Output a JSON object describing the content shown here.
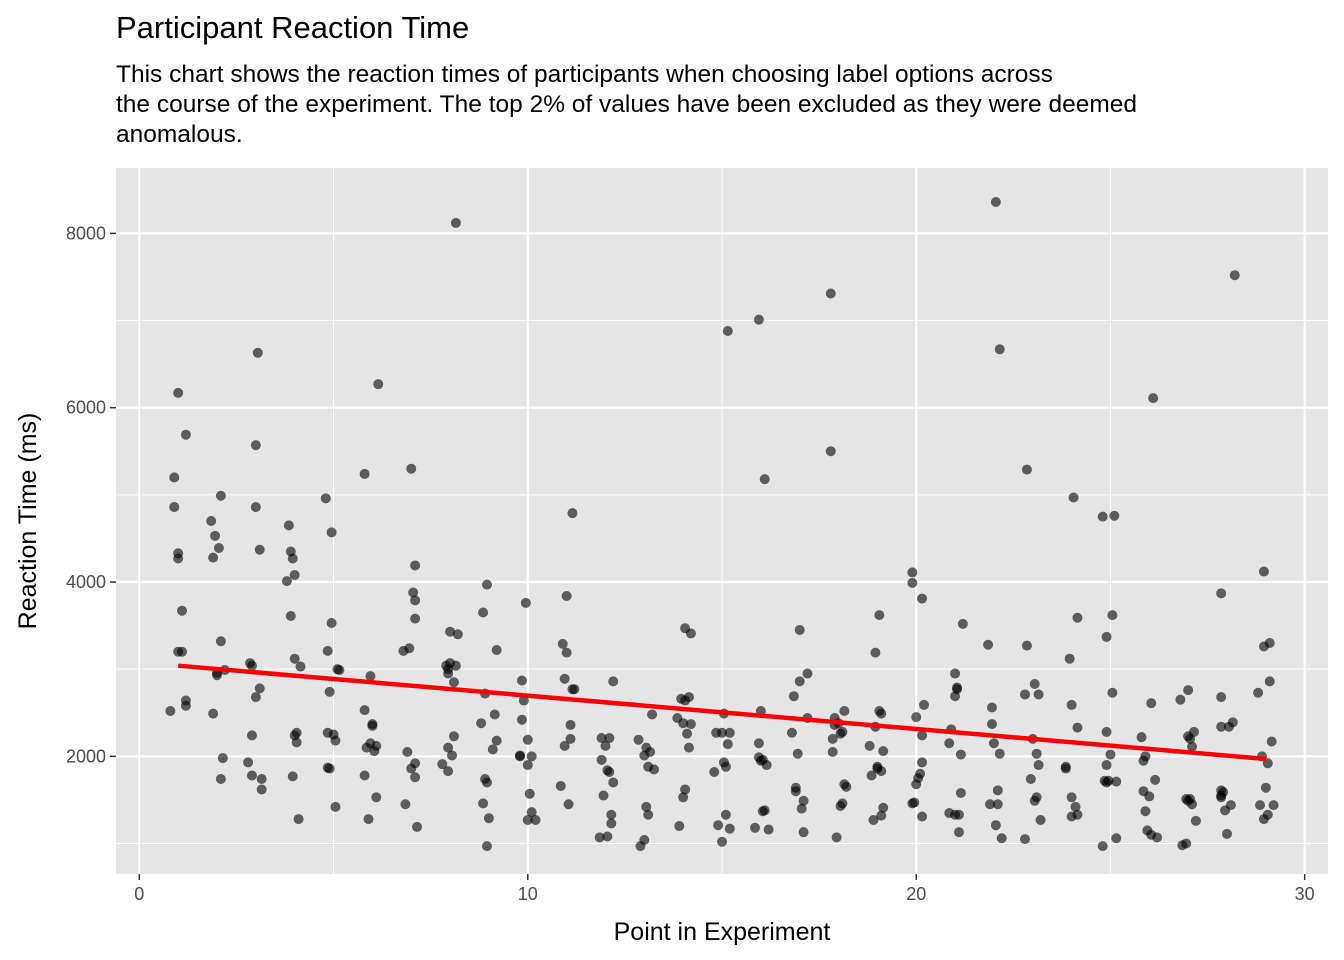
{
  "chart_data": {
    "type": "scatter",
    "title": "Participant Reaction Time",
    "subtitle": "This chart shows the reaction times of participants when choosing label options across\nthe course of the experiment. The top 2% of values have been excluded as they were deemed\nanomalous.",
    "xlabel": "Point in Experiment",
    "ylabel": "Reaction Time (ms)",
    "xlim": [
      -0.6,
      30.6
    ],
    "ylim": [
      650,
      8750
    ],
    "x_ticks": [
      0,
      10,
      20,
      30
    ],
    "y_ticks": [
      2000,
      4000,
      6000,
      8000
    ],
    "x_tick_labels": [
      "0",
      "10",
      "20",
      "30"
    ],
    "y_tick_labels": [
      "2000",
      "4000",
      "6000",
      "8000"
    ],
    "grid": true,
    "legend": "none",
    "colors": {
      "panel": "#e5e5e5",
      "grid": "#ffffff",
      "point": "#000000",
      "trend": "#ff0000",
      "axis_text": "#4d4d4d"
    },
    "trend_line": {
      "x": [
        1,
        29
      ],
      "y": [
        3040,
        1970
      ]
    },
    "points": [
      [
        0.8,
        2520
      ],
      [
        0.9,
        5200
      ],
      [
        0.9,
        4860
      ],
      [
        1.0,
        6170
      ],
      [
        1.0,
        4330
      ],
      [
        1.0,
        4270
      ],
      [
        1.1,
        3670
      ],
      [
        1.0,
        3200
      ],
      [
        1.1,
        3200
      ],
      [
        1.2,
        5690
      ],
      [
        1.2,
        2640
      ],
      [
        1.2,
        2580
      ],
      [
        1.85,
        4700
      ],
      [
        1.9,
        4280
      ],
      [
        1.9,
        2490
      ],
      [
        1.95,
        4530
      ],
      [
        2.0,
        2960
      ],
      [
        2.0,
        2930
      ],
      [
        2.05,
        4390
      ],
      [
        2.1,
        4990
      ],
      [
        2.1,
        3320
      ],
      [
        2.15,
        1980
      ],
      [
        2.1,
        1740
      ],
      [
        2.2,
        2990
      ],
      [
        2.8,
        1930
      ],
      [
        2.85,
        3070
      ],
      [
        2.9,
        3040
      ],
      [
        2.9,
        2240
      ],
      [
        2.9,
        1780
      ],
      [
        3.0,
        2680
      ],
      [
        3.0,
        5570
      ],
      [
        3.0,
        4860
      ],
      [
        3.05,
        6630
      ],
      [
        3.1,
        4370
      ],
      [
        3.1,
        2780
      ],
      [
        3.15,
        1740
      ],
      [
        3.15,
        1620
      ],
      [
        3.8,
        4010
      ],
      [
        3.85,
        4650
      ],
      [
        3.9,
        3610
      ],
      [
        3.9,
        4350
      ],
      [
        3.95,
        4270
      ],
      [
        4.0,
        3120
      ],
      [
        4.0,
        4080
      ],
      [
        4.0,
        2240
      ],
      [
        4.05,
        2270
      ],
      [
        4.05,
        2160
      ],
      [
        3.95,
        1770
      ],
      [
        4.1,
        1280
      ],
      [
        4.15,
        3030
      ],
      [
        4.8,
        4960
      ],
      [
        4.85,
        3210
      ],
      [
        4.85,
        2270
      ],
      [
        4.85,
        1870
      ],
      [
        4.9,
        1860
      ],
      [
        4.9,
        2740
      ],
      [
        4.95,
        4570
      ],
      [
        4.95,
        3530
      ],
      [
        5.0,
        2250
      ],
      [
        5.05,
        2180
      ],
      [
        5.05,
        1420
      ],
      [
        5.1,
        3000
      ],
      [
        5.15,
        2990
      ],
      [
        5.8,
        5240
      ],
      [
        5.8,
        2530
      ],
      [
        5.8,
        1780
      ],
      [
        5.85,
        2100
      ],
      [
        5.9,
        1280
      ],
      [
        5.95,
        2150
      ],
      [
        5.95,
        2920
      ],
      [
        6.0,
        2370
      ],
      [
        6.0,
        2350
      ],
      [
        6.05,
        2060
      ],
      [
        6.1,
        2120
      ],
      [
        6.15,
        6270
      ],
      [
        6.1,
        1530
      ],
      [
        6.8,
        3210
      ],
      [
        6.85,
        1450
      ],
      [
        6.9,
        2050
      ],
      [
        6.95,
        3240
      ],
      [
        7.0,
        5300
      ],
      [
        7.0,
        1860
      ],
      [
        7.05,
        3880
      ],
      [
        7.1,
        3790
      ],
      [
        7.1,
        3580
      ],
      [
        7.1,
        4190
      ],
      [
        7.1,
        1920
      ],
      [
        7.1,
        1760
      ],
      [
        7.15,
        1190
      ],
      [
        7.8,
        1910
      ],
      [
        7.9,
        3040
      ],
      [
        7.95,
        3000
      ],
      [
        7.95,
        2950
      ],
      [
        7.95,
        1830
      ],
      [
        7.95,
        2100
      ],
      [
        8.0,
        3070
      ],
      [
        8.0,
        3430
      ],
      [
        8.1,
        2850
      ],
      [
        8.05,
        2010
      ],
      [
        8.1,
        2230
      ],
      [
        8.15,
        8120
      ],
      [
        8.15,
        3040
      ],
      [
        8.2,
        3400
      ],
      [
        8.8,
        2380
      ],
      [
        8.85,
        3650
      ],
      [
        8.85,
        1460
      ],
      [
        8.9,
        1740
      ],
      [
        8.9,
        2720
      ],
      [
        8.95,
        3970
      ],
      [
        8.95,
        1700
      ],
      [
        8.95,
        970
      ],
      [
        9.0,
        1290
      ],
      [
        9.1,
        2080
      ],
      [
        9.15,
        2480
      ],
      [
        9.2,
        3220
      ],
      [
        9.2,
        2180
      ],
      [
        9.8,
        2010
      ],
      [
        9.8,
        2000
      ],
      [
        9.85,
        2870
      ],
      [
        9.85,
        2420
      ],
      [
        9.9,
        2640
      ],
      [
        9.95,
        3760
      ],
      [
        10.0,
        2190
      ],
      [
        10.0,
        1900
      ],
      [
        10.05,
        1570
      ],
      [
        10.0,
        1270
      ],
      [
        10.1,
        2000
      ],
      [
        10.1,
        1360
      ],
      [
        10.2,
        1270
      ],
      [
        10.85,
        1660
      ],
      [
        10.9,
        3290
      ],
      [
        10.95,
        2120
      ],
      [
        10.95,
        2890
      ],
      [
        11.0,
        3190
      ],
      [
        11.0,
        3840
      ],
      [
        11.05,
        1450
      ],
      [
        11.1,
        2360
      ],
      [
        11.1,
        2200
      ],
      [
        11.15,
        2770
      ],
      [
        11.15,
        4790
      ],
      [
        11.2,
        2770
      ],
      [
        11.85,
        1070
      ],
      [
        11.9,
        1960
      ],
      [
        11.9,
        2210
      ],
      [
        11.95,
        1550
      ],
      [
        12.0,
        2120
      ],
      [
        12.05,
        1080
      ],
      [
        12.05,
        1840
      ],
      [
        12.1,
        2210
      ],
      [
        12.1,
        1820
      ],
      [
        12.15,
        1230
      ],
      [
        12.15,
        1330
      ],
      [
        12.2,
        1700
      ],
      [
        12.2,
        2860
      ],
      [
        12.85,
        2190
      ],
      [
        12.9,
        970
      ],
      [
        13.0,
        1040
      ],
      [
        13.05,
        2100
      ],
      [
        13.0,
        2010
      ],
      [
        13.1,
        1880
      ],
      [
        13.05,
        1420
      ],
      [
        13.1,
        1330
      ],
      [
        13.15,
        2050
      ],
      [
        13.2,
        2480
      ],
      [
        13.25,
        1850
      ],
      [
        13.85,
        2440
      ],
      [
        13.9,
        1200
      ],
      [
        13.95,
        2660
      ],
      [
        14.0,
        2380
      ],
      [
        14.0,
        1530
      ],
      [
        14.05,
        2640
      ],
      [
        14.05,
        1620
      ],
      [
        14.1,
        2260
      ],
      [
        14.05,
        3470
      ],
      [
        14.15,
        2680
      ],
      [
        14.2,
        2370
      ],
      [
        14.15,
        2100
      ],
      [
        14.2,
        3410
      ],
      [
        14.8,
        1820
      ],
      [
        14.85,
        2270
      ],
      [
        14.9,
        1210
      ],
      [
        15.0,
        1020
      ],
      [
        15.0,
        2270
      ],
      [
        15.05,
        1930
      ],
      [
        15.05,
        2490
      ],
      [
        15.1,
        1880
      ],
      [
        15.1,
        1330
      ],
      [
        15.15,
        2140
      ],
      [
        15.15,
        6880
      ],
      [
        15.2,
        1170
      ],
      [
        15.2,
        2270
      ],
      [
        15.85,
        1180
      ],
      [
        15.95,
        7010
      ],
      [
        15.95,
        2150
      ],
      [
        15.95,
        1990
      ],
      [
        16.0,
        1950
      ],
      [
        16.0,
        2520
      ],
      [
        16.05,
        1370
      ],
      [
        16.05,
        1960
      ],
      [
        16.1,
        1380
      ],
      [
        16.1,
        5180
      ],
      [
        16.15,
        1900
      ],
      [
        16.2,
        1160
      ],
      [
        16.8,
        2270
      ],
      [
        16.85,
        2690
      ],
      [
        16.9,
        1640
      ],
      [
        16.95,
        2030
      ],
      [
        16.9,
        1600
      ],
      [
        17.0,
        3450
      ],
      [
        17.0,
        2860
      ],
      [
        17.05,
        1400
      ],
      [
        17.1,
        1490
      ],
      [
        17.1,
        1130
      ],
      [
        17.2,
        2950
      ],
      [
        17.2,
        2440
      ],
      [
        17.8,
        7310
      ],
      [
        17.8,
        5500
      ],
      [
        17.85,
        2200
      ],
      [
        17.85,
        2050
      ],
      [
        17.9,
        2360
      ],
      [
        17.9,
        2440
      ],
      [
        17.95,
        1070
      ],
      [
        18.0,
        2380
      ],
      [
        18.05,
        2260
      ],
      [
        18.05,
        1430
      ],
      [
        18.1,
        2280
      ],
      [
        18.1,
        1460
      ],
      [
        18.15,
        2520
      ],
      [
        18.15,
        1680
      ],
      [
        18.2,
        1650
      ],
      [
        18.8,
        2120
      ],
      [
        18.85,
        1780
      ],
      [
        18.9,
        1270
      ],
      [
        18.95,
        3190
      ],
      [
        18.95,
        2340
      ],
      [
        19.0,
        1880
      ],
      [
        19.0,
        1860
      ],
      [
        19.05,
        3620
      ],
      [
        19.05,
        2520
      ],
      [
        19.1,
        1830
      ],
      [
        19.1,
        2490
      ],
      [
        19.15,
        2060
      ],
      [
        19.15,
        1410
      ],
      [
        19.1,
        1320
      ],
      [
        19.9,
        3990
      ],
      [
        19.9,
        4110
      ],
      [
        19.9,
        1460
      ],
      [
        19.95,
        1470
      ],
      [
        20.0,
        1680
      ],
      [
        20.0,
        2450
      ],
      [
        20.05,
        1750
      ],
      [
        20.1,
        1800
      ],
      [
        20.15,
        2240
      ],
      [
        20.15,
        1930
      ],
      [
        20.15,
        3810
      ],
      [
        20.15,
        1310
      ],
      [
        20.2,
        2590
      ],
      [
        20.85,
        2150
      ],
      [
        20.85,
        1350
      ],
      [
        20.9,
        2310
      ],
      [
        21.0,
        1330
      ],
      [
        21.0,
        2950
      ],
      [
        21.0,
        2690
      ],
      [
        21.05,
        2790
      ],
      [
        21.05,
        2770
      ],
      [
        21.1,
        1130
      ],
      [
        21.1,
        1330
      ],
      [
        21.15,
        2020
      ],
      [
        21.2,
        3520
      ],
      [
        21.15,
        1580
      ],
      [
        21.85,
        3280
      ],
      [
        21.9,
        1450
      ],
      [
        21.95,
        2560
      ],
      [
        21.95,
        2370
      ],
      [
        22.0,
        2150
      ],
      [
        22.05,
        8360
      ],
      [
        22.05,
        1210
      ],
      [
        22.1,
        1450
      ],
      [
        22.1,
        1610
      ],
      [
        22.15,
        2030
      ],
      [
        22.15,
        6670
      ],
      [
        22.2,
        1060
      ],
      [
        22.8,
        2710
      ],
      [
        22.8,
        1050
      ],
      [
        22.85,
        5290
      ],
      [
        22.85,
        3270
      ],
      [
        22.95,
        1740
      ],
      [
        23.0,
        2200
      ],
      [
        23.05,
        2830
      ],
      [
        23.05,
        1490
      ],
      [
        23.1,
        1530
      ],
      [
        23.1,
        2030
      ],
      [
        23.15,
        2710
      ],
      [
        23.15,
        1900
      ],
      [
        23.2,
        1270
      ],
      [
        23.85,
        1880
      ],
      [
        23.85,
        1860
      ],
      [
        23.95,
        3120
      ],
      [
        24.0,
        2590
      ],
      [
        24.0,
        1530
      ],
      [
        24.0,
        1310
      ],
      [
        24.05,
        4970
      ],
      [
        24.1,
        1420
      ],
      [
        24.15,
        3590
      ],
      [
        24.15,
        2330
      ],
      [
        24.15,
        1330
      ],
      [
        24.8,
        4750
      ],
      [
        24.8,
        970
      ],
      [
        24.85,
        1720
      ],
      [
        24.9,
        3370
      ],
      [
        24.9,
        2280
      ],
      [
        24.9,
        1900
      ],
      [
        24.9,
        1700
      ],
      [
        24.95,
        1720
      ],
      [
        25.0,
        2020
      ],
      [
        25.05,
        3620
      ],
      [
        25.05,
        2730
      ],
      [
        25.1,
        4760
      ],
      [
        25.15,
        1060
      ],
      [
        25.15,
        1710
      ],
      [
        25.8,
        2220
      ],
      [
        25.85,
        1950
      ],
      [
        25.85,
        1600
      ],
      [
        25.9,
        1370
      ],
      [
        25.9,
        2000
      ],
      [
        25.95,
        1150
      ],
      [
        26.0,
        1540
      ],
      [
        26.05,
        2610
      ],
      [
        26.05,
        1100
      ],
      [
        26.1,
        6110
      ],
      [
        26.15,
        1730
      ],
      [
        26.2,
        1070
      ],
      [
        26.8,
        2650
      ],
      [
        26.85,
        980
      ],
      [
        26.95,
        1510
      ],
      [
        26.95,
        1000
      ],
      [
        27.0,
        1490
      ],
      [
        27.0,
        2760
      ],
      [
        27.0,
        2230
      ],
      [
        27.05,
        1510
      ],
      [
        27.05,
        2200
      ],
      [
        27.1,
        1450
      ],
      [
        27.15,
        2280
      ],
      [
        27.1,
        2110
      ],
      [
        27.2,
        1260
      ],
      [
        27.85,
        3870
      ],
      [
        27.85,
        2680
      ],
      [
        27.85,
        1550
      ],
      [
        27.85,
        1530
      ],
      [
        27.85,
        1610
      ],
      [
        27.85,
        2340
      ],
      [
        27.9,
        1590
      ],
      [
        27.95,
        1380
      ],
      [
        28.0,
        1110
      ],
      [
        28.05,
        2340
      ],
      [
        28.1,
        1440
      ],
      [
        28.15,
        2390
      ],
      [
        28.2,
        7520
      ],
      [
        28.8,
        2730
      ],
      [
        28.85,
        1440
      ],
      [
        28.9,
        2000
      ],
      [
        28.95,
        4120
      ],
      [
        28.95,
        1280
      ],
      [
        28.95,
        3260
      ],
      [
        29.0,
        1640
      ],
      [
        29.05,
        1330
      ],
      [
        29.05,
        1920
      ],
      [
        29.1,
        3300
      ],
      [
        29.1,
        2860
      ],
      [
        29.15,
        2170
      ],
      [
        29.2,
        1440
      ]
    ]
  }
}
